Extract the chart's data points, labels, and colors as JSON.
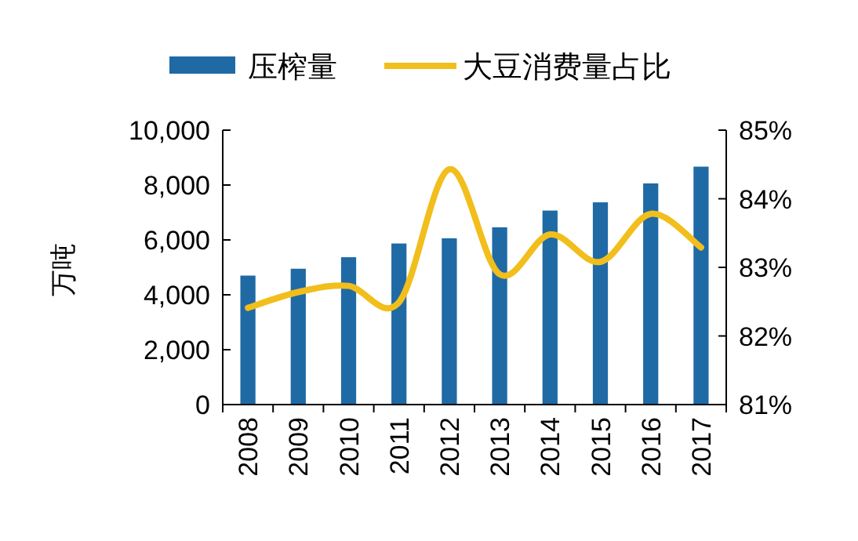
{
  "chart_data": {
    "type": "bar",
    "categories": [
      "2008",
      "2009",
      "2010",
      "2011",
      "2012",
      "2013",
      "2014",
      "2015",
      "2016",
      "2017"
    ],
    "ylabel": "万吨",
    "legend": "top",
    "grid": false,
    "ylim": [
      0,
      10000
    ],
    "yticks": [
      0,
      {
        "value": 2000,
        "label": "2,000"
      },
      {
        "value": 4000,
        "label": "4,000"
      },
      {
        "value": 6000,
        "label": "6,000"
      },
      {
        "value": 8000,
        "label": "8,000"
      },
      {
        "value": 10000,
        "label": "10,000"
      }
    ],
    "y2lim": [
      81,
      85
    ],
    "y2ticks": [
      {
        "value": 81,
        "label": "81%"
      },
      {
        "value": 82,
        "label": "82%"
      },
      {
        "value": 83,
        "label": "83%"
      },
      {
        "value": 84,
        "label": "84%"
      },
      {
        "value": 85,
        "label": "85%"
      }
    ],
    "series": [
      {
        "name": "压榨量",
        "color": "#1f6aa5",
        "values": [
          4700,
          4950,
          5370,
          5870,
          6060,
          6460,
          7070,
          7370,
          8060,
          8670
        ]
      },
      {
        "name": "大豆消费量占比",
        "type": "line",
        "axis": "y2",
        "color": "#f2be1c",
        "values": [
          82.41,
          82.64,
          82.73,
          82.49,
          84.43,
          82.9,
          83.48,
          83.08,
          83.78,
          83.29
        ]
      }
    ]
  }
}
